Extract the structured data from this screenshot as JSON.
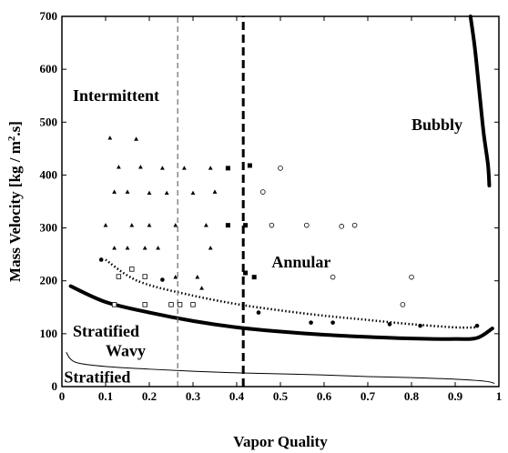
{
  "chart_data": {
    "type": "scatter",
    "title": "",
    "xlabel": "Vapor Quality",
    "ylabel": "Mass Velocity [kg / m².s]",
    "xlim": [
      0,
      1
    ],
    "ylim": [
      0,
      700
    ],
    "grid": false,
    "x_ticks": [
      "0",
      "0.1",
      "0.2",
      "0.3",
      "0.4",
      "0.5",
      "0.6",
      "0.7",
      "0.8",
      "0.9",
      "1"
    ],
    "y_ticks": [
      "0",
      "100",
      "200",
      "300",
      "400",
      "500",
      "600",
      "700"
    ],
    "region_labels": [
      {
        "text": "Intermittent",
        "x": 0.025,
        "y": 540
      },
      {
        "text": "Bubbly",
        "x": 0.8,
        "y": 485
      },
      {
        "text": "Annular",
        "x": 0.48,
        "y": 225
      },
      {
        "text": "Stratified",
        "x": 0.025,
        "y": 95
      },
      {
        "text": "Wavy",
        "x": 0.1,
        "y": 58
      },
      {
        "text": "Stratified",
        "x": 0.005,
        "y": 8
      }
    ],
    "boundary_lines": [
      {
        "style": "thick-solid",
        "points": [
          [
            0.02,
            190
          ],
          [
            0.1,
            160
          ],
          [
            0.2,
            140
          ],
          [
            0.3,
            124
          ],
          [
            0.4,
            112
          ],
          [
            0.5,
            104
          ],
          [
            0.6,
            98
          ],
          [
            0.7,
            94
          ],
          [
            0.8,
            91
          ],
          [
            0.9,
            90
          ],
          [
            0.95,
            92
          ],
          [
            0.985,
            110
          ]
        ]
      },
      {
        "style": "thin-solid",
        "points": [
          [
            0.01,
            65
          ],
          [
            0.02,
            52
          ],
          [
            0.04,
            44
          ],
          [
            0.1,
            38
          ],
          [
            0.2,
            33
          ],
          [
            0.3,
            29
          ],
          [
            0.4,
            26
          ],
          [
            0.5,
            24
          ],
          [
            0.6,
            22
          ],
          [
            0.7,
            19
          ],
          [
            0.8,
            17
          ],
          [
            0.9,
            14
          ],
          [
            0.97,
            10
          ],
          [
            0.99,
            6
          ]
        ]
      },
      {
        "style": "dotted",
        "points": [
          [
            0.1,
            240
          ],
          [
            0.15,
            210
          ],
          [
            0.2,
            192
          ],
          [
            0.3,
            172
          ],
          [
            0.4,
            156
          ],
          [
            0.5,
            144
          ],
          [
            0.6,
            134
          ],
          [
            0.7,
            126
          ],
          [
            0.8,
            118
          ],
          [
            0.9,
            112
          ],
          [
            0.95,
            112
          ]
        ]
      },
      {
        "style": "thick-solid",
        "points": [
          [
            0.935,
            700
          ],
          [
            0.945,
            640
          ],
          [
            0.955,
            560
          ],
          [
            0.965,
            480
          ],
          [
            0.975,
            420
          ],
          [
            0.978,
            380
          ]
        ]
      },
      {
        "style": "thin-dashed",
        "points": [
          [
            0.265,
            0
          ],
          [
            0.265,
            700
          ]
        ]
      },
      {
        "style": "thick-dashed",
        "points": [
          [
            0.415,
            0
          ],
          [
            0.415,
            700
          ]
        ]
      }
    ],
    "series": [
      {
        "marker": "filled-triangle",
        "points": [
          [
            0.11,
            470
          ],
          [
            0.17,
            468
          ],
          [
            0.13,
            415
          ],
          [
            0.18,
            415
          ],
          [
            0.23,
            413
          ],
          [
            0.28,
            413
          ],
          [
            0.34,
            413
          ],
          [
            0.12,
            368
          ],
          [
            0.15,
            368
          ],
          [
            0.2,
            366
          ],
          [
            0.24,
            366
          ],
          [
            0.3,
            366
          ],
          [
            0.35,
            368
          ],
          [
            0.1,
            305
          ],
          [
            0.16,
            305
          ],
          [
            0.2,
            305
          ],
          [
            0.26,
            305
          ],
          [
            0.33,
            305
          ],
          [
            0.12,
            262
          ],
          [
            0.15,
            262
          ],
          [
            0.19,
            262
          ],
          [
            0.22,
            262
          ],
          [
            0.34,
            262
          ],
          [
            0.26,
            207
          ],
          [
            0.31,
            207
          ],
          [
            0.32,
            186
          ]
        ]
      },
      {
        "marker": "filled-square",
        "points": [
          [
            0.38,
            413
          ],
          [
            0.43,
            418
          ],
          [
            0.38,
            305
          ],
          [
            0.42,
            305
          ],
          [
            0.42,
            215
          ],
          [
            0.44,
            207
          ]
        ]
      },
      {
        "marker": "open-circle",
        "points": [
          [
            0.5,
            413
          ],
          [
            0.46,
            368
          ],
          [
            0.48,
            305
          ],
          [
            0.56,
            305
          ],
          [
            0.64,
            303
          ],
          [
            0.67,
            305
          ],
          [
            0.62,
            207
          ],
          [
            0.8,
            207
          ],
          [
            0.78,
            155
          ]
        ]
      },
      {
        "marker": "open-square",
        "points": [
          [
            0.13,
            208
          ],
          [
            0.16,
            222
          ],
          [
            0.19,
            208
          ],
          [
            0.12,
            155
          ],
          [
            0.19,
            155
          ],
          [
            0.25,
            155
          ],
          [
            0.3,
            155
          ],
          [
            0.27,
            155
          ]
        ]
      },
      {
        "marker": "filled-circle",
        "points": [
          [
            0.09,
            240
          ],
          [
            0.23,
            202
          ],
          [
            0.45,
            140
          ],
          [
            0.57,
            121
          ],
          [
            0.62,
            121
          ],
          [
            0.75,
            118
          ],
          [
            0.82,
            115
          ],
          [
            0.95,
            115
          ]
        ]
      }
    ]
  }
}
